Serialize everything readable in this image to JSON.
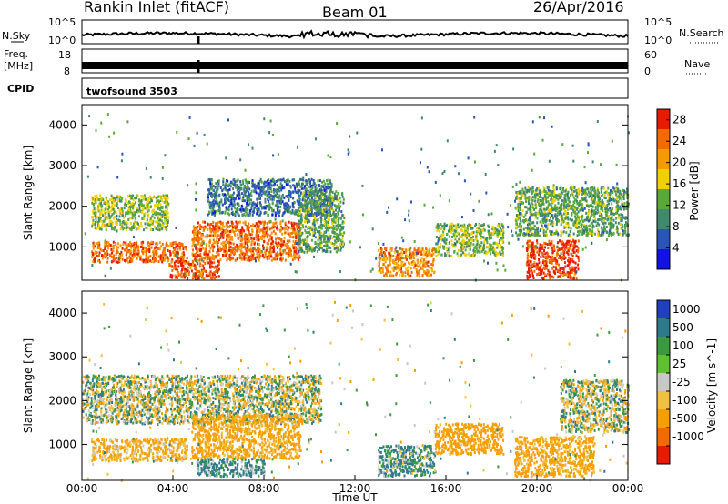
{
  "header": {
    "title": "Rankin Inlet (fitACF)",
    "beam": "Beam 01",
    "date": "26/Apr/2016"
  },
  "strips": {
    "nsky_label": "N.Sky",
    "nsky_top": "10^5",
    "nsky_bottom": "10^0",
    "nsearch_label": "N.Search",
    "nsearch_top": "10^5",
    "nsearch_bottom": "10^0",
    "freq_label": "Freq.",
    "freq_unit": "[MHz]",
    "freq_top": "18",
    "freq_bottom": "8",
    "nave_label": "Nave",
    "nave_top": "60",
    "nave_bottom": "0",
    "cpid_label": "CPID",
    "cpid_value": "twofsound 3503"
  },
  "chart_data": [
    {
      "type": "heatmap",
      "panel": "power",
      "ylabel": "Slant Range [km]",
      "yticks": [
        1000,
        2000,
        3000,
        4000
      ],
      "ylim": [
        180,
        4500
      ],
      "xlim": [
        0,
        24
      ],
      "colorbar_label": "Power [dB]",
      "colorbar_ticks": [
        4,
        8,
        12,
        16,
        20,
        24,
        28
      ],
      "colorbar_range": [
        0,
        30
      ],
      "colors": [
        "#1212e6",
        "#2a55b8",
        "#3f8a6c",
        "#5aa83a",
        "#f0d000",
        "#f59a00",
        "#f26a00",
        "#e81a00"
      ],
      "echo_regions": [
        {
          "t0": 0.4,
          "t1": 4.6,
          "r0": 650,
          "r1": 1150,
          "level": 24
        },
        {
          "t0": 0.4,
          "t1": 3.8,
          "r0": 1450,
          "r1": 2300,
          "level": 14
        },
        {
          "t0": 3.8,
          "t1": 6.0,
          "r0": 250,
          "r1": 700,
          "level": 26
        },
        {
          "t0": 4.8,
          "t1": 9.6,
          "r0": 700,
          "r1": 1650,
          "level": 24
        },
        {
          "t0": 5.5,
          "t1": 11.0,
          "r0": 1800,
          "r1": 2700,
          "level": 8
        },
        {
          "t0": 9.5,
          "t1": 11.5,
          "r0": 900,
          "r1": 2400,
          "level": 12
        },
        {
          "t0": 13.0,
          "t1": 15.5,
          "r0": 300,
          "r1": 1000,
          "level": 22
        },
        {
          "t0": 15.5,
          "t1": 18.5,
          "r0": 800,
          "r1": 1600,
          "level": 14
        },
        {
          "t0": 19.5,
          "t1": 21.8,
          "r0": 250,
          "r1": 1200,
          "level": 27
        },
        {
          "t0": 19.0,
          "t1": 24.0,
          "r0": 1300,
          "r1": 2500,
          "level": 12
        }
      ]
    },
    {
      "type": "heatmap",
      "panel": "velocity",
      "ylabel": "Slant Range [km]",
      "yticks": [
        1000,
        2000,
        3000,
        4000
      ],
      "ylim": [
        180,
        4500
      ],
      "xlim": [
        0,
        24
      ],
      "xlabel": "Time UT",
      "xticks": [
        "00:00",
        "04:00",
        "08:00",
        "12:00",
        "16:00",
        "20:00",
        "00:00"
      ],
      "colorbar_label": "Velocity [m s^-1]",
      "colorbar_ticks": [
        "1000",
        "500",
        "100",
        "25",
        "-25",
        "-100",
        "-500",
        "-1000"
      ],
      "colors": [
        "#2040c0",
        "#2f7a8a",
        "#3a9a40",
        "#60c030",
        "#c8c8c8",
        "#f0c040",
        "#f5a000",
        "#f26a00",
        "#e81a00"
      ],
      "ground_scatter_color": "#c8c8c8",
      "echo_regions": [
        {
          "t0": 0.4,
          "t1": 4.6,
          "r0": 650,
          "r1": 1150,
          "level": -150
        },
        {
          "t0": 0.0,
          "t1": 10.5,
          "r0": 1500,
          "r1": 2600,
          "level": 0
        },
        {
          "t0": 4.8,
          "t1": 9.6,
          "r0": 700,
          "r1": 1700,
          "level": -200
        },
        {
          "t0": 5.0,
          "t1": 8.0,
          "r0": 300,
          "r1": 700,
          "level": 150
        },
        {
          "t0": 13.0,
          "t1": 15.5,
          "r0": 300,
          "r1": 1000,
          "level": 120
        },
        {
          "t0": 15.5,
          "t1": 18.5,
          "r0": 800,
          "r1": 1500,
          "level": -300
        },
        {
          "t0": 19.0,
          "t1": 22.5,
          "r0": 300,
          "r1": 1200,
          "level": -200
        },
        {
          "t0": 21.0,
          "t1": 24.0,
          "r0": 1300,
          "r1": 2500,
          "level": 0
        }
      ]
    }
  ]
}
